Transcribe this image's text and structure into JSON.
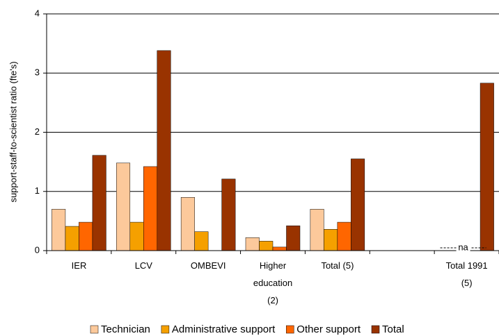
{
  "chart_data": {
    "type": "bar",
    "ylabel": "support-staff-to-scientist ratio (fte's)",
    "categories": [
      "IER",
      "LCV",
      "OMBEVI",
      "Higher\neducation\n(2)",
      "Total (5)",
      null,
      "Total 1991\n(5)"
    ],
    "series": [
      {
        "name": "Technician",
        "color": "#fcc99b",
        "values": [
          0.7,
          1.48,
          0.9,
          0.22,
          0.7,
          null,
          null
        ]
      },
      {
        "name": "Administrative support",
        "color": "#f5a000",
        "values": [
          0.41,
          0.48,
          0.32,
          0.16,
          0.36,
          null,
          null
        ]
      },
      {
        "name": "Other support",
        "color": "#ff6600",
        "values": [
          0.48,
          1.42,
          null,
          0.06,
          0.48,
          null,
          null
        ]
      },
      {
        "name": "Total",
        "color": "#993300",
        "values": [
          1.61,
          3.38,
          1.21,
          0.42,
          1.55,
          null,
          2.83
        ]
      }
    ],
    "annotation": "na",
    "ylim": [
      0,
      4
    ],
    "yticks": [
      0,
      1,
      2,
      3,
      4
    ],
    "grid": true,
    "legend": "bottom"
  }
}
